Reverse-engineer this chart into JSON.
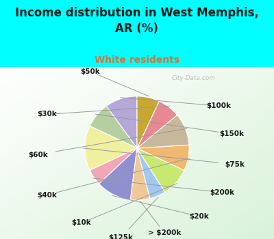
{
  "title": "Income distribution in West Memphis,\nAR (%)",
  "subtitle": "White residents",
  "title_color": "#1a1a1a",
  "subtitle_color": "#c87941",
  "bg_color": "#00ffff",
  "watermark": "City-Data.com",
  "labels": [
    "$100k",
    "$150k",
    "$75k",
    "$200k",
    "$20k",
    "> $200k",
    "$125k",
    "$10k",
    "$40k",
    "$60k",
    "$30k",
    "$50k"
  ],
  "values": [
    10,
    8,
    14,
    5,
    11,
    6,
    5,
    9,
    8,
    10,
    7,
    7
  ],
  "colors": [
    "#b3a8d8",
    "#b5cfa0",
    "#f0f0a0",
    "#f0a8b8",
    "#9090d0",
    "#f0c898",
    "#a0c8f0",
    "#c8e870",
    "#f0b870",
    "#c8b89a",
    "#e88890",
    "#c8a830"
  ],
  "label_fontsize": 7.5,
  "title_fontsize": 12,
  "subtitle_fontsize": 10,
  "startangle": 90
}
